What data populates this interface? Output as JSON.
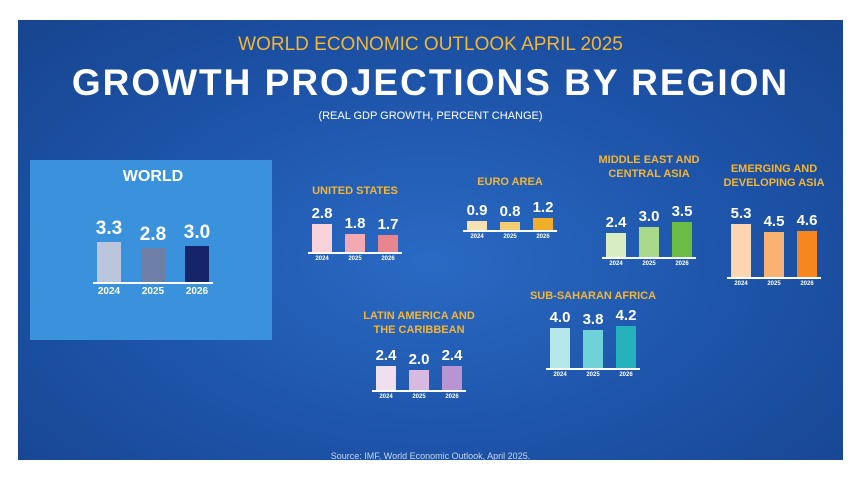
{
  "header": {
    "kicker": "WORLD ECONOMIC OUTLOOK APRIL 2025",
    "title": "GROWTH PROJECTIONS BY REGION",
    "subtitle": "(REAL GDP GROWTH, PERCENT CHANGE)"
  },
  "source": "Source: IMF, World Economic Outlook, April 2025.",
  "chart_data": [
    {
      "type": "bar",
      "title": "WORLD",
      "categories": [
        "2024",
        "2025",
        "2026"
      ],
      "values": [
        3.3,
        2.8,
        3.0
      ],
      "value_labels": [
        "3.3",
        "2.8",
        "3.0"
      ],
      "colors": [
        "#b9c6dc",
        "#6f80a6",
        "#15256a"
      ]
    },
    {
      "type": "bar",
      "title": "UNITED STATES",
      "categories": [
        "2024",
        "2025",
        "2026"
      ],
      "values": [
        2.8,
        1.8,
        1.7
      ],
      "value_labels": [
        "2.8",
        "1.8",
        "1.7"
      ],
      "colors": [
        "#f7d2d8",
        "#f2a9b2",
        "#e9858e"
      ]
    },
    {
      "type": "bar",
      "title": "EURO AREA",
      "categories": [
        "2024",
        "2025",
        "2026"
      ],
      "values": [
        0.9,
        0.8,
        1.2
      ],
      "value_labels": [
        "0.9",
        "0.8",
        "1.2"
      ],
      "colors": [
        "#f7e2b2",
        "#f4cd72",
        "#efad2a"
      ]
    },
    {
      "type": "bar",
      "title": "MIDDLE EAST AND CENTRAL ASIA",
      "categories": [
        "2024",
        "2025",
        "2026"
      ],
      "values": [
        2.4,
        3.0,
        3.5
      ],
      "value_labels": [
        "2.4",
        "3.0",
        "3.5"
      ],
      "colors": [
        "#d8edc2",
        "#a9d98b",
        "#6abc44"
      ]
    },
    {
      "type": "bar",
      "title": "EMERGING AND DEVELOPING ASIA",
      "categories": [
        "2024",
        "2025",
        "2026"
      ],
      "values": [
        5.3,
        4.5,
        4.6
      ],
      "value_labels": [
        "5.3",
        "4.5",
        "4.6"
      ],
      "colors": [
        "#fcd5b2",
        "#f9b272",
        "#f6871e"
      ]
    },
    {
      "type": "bar",
      "title": "LATIN AMERICA AND THE CARIBBEAN",
      "categories": [
        "2024",
        "2025",
        "2026"
      ],
      "values": [
        2.4,
        2.0,
        2.4
      ],
      "value_labels": [
        "2.4",
        "2.0",
        "2.4"
      ],
      "colors": [
        "#f0dfee",
        "#d8bae0",
        "#b894d2"
      ]
    },
    {
      "type": "bar",
      "title": "SUB-SAHARAN AFRICA",
      "categories": [
        "2024",
        "2025",
        "2026"
      ],
      "values": [
        4.0,
        3.8,
        4.2
      ],
      "value_labels": [
        "4.0",
        "3.8",
        "4.2"
      ],
      "colors": [
        "#b6e7eb",
        "#6fd2d9",
        "#25b2bd"
      ]
    }
  ]
}
